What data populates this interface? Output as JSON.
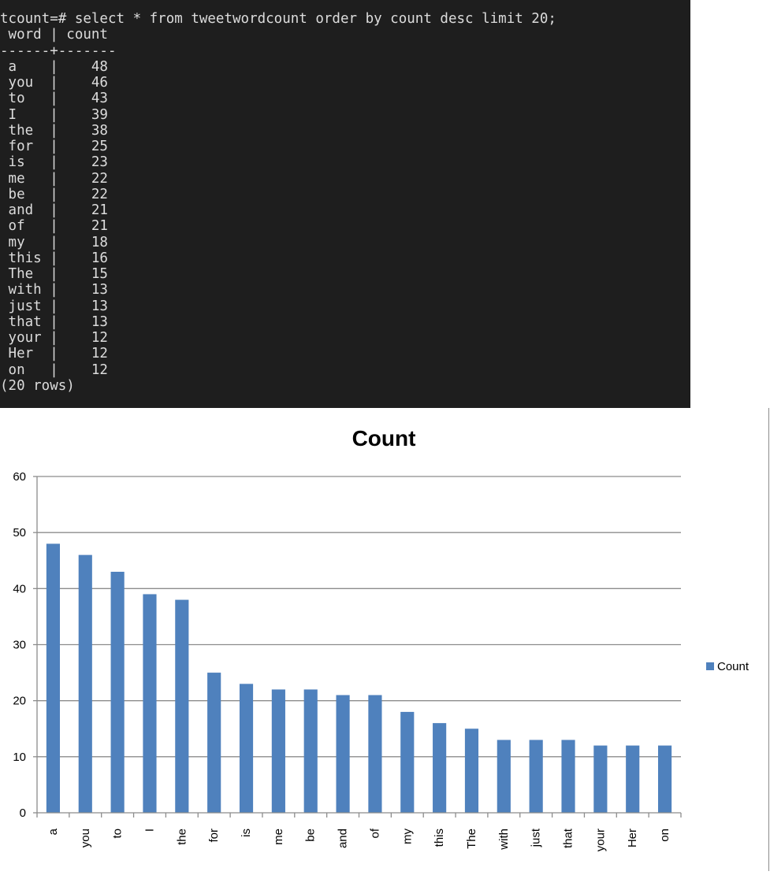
{
  "terminal": {
    "lines": [
      "tcount=# select * from tweetwordcount order by count desc limit 20;",
      " word | count",
      "------+-------",
      " a    |    48",
      " you  |    46",
      " to   |    43",
      " I    |    39",
      " the  |    38",
      " for  |    25",
      " is   |    23",
      " me   |    22",
      " be   |    22",
      " and  |    21",
      " of   |    21",
      " my   |    18",
      " this |    16",
      " The  |    15",
      " with |    13",
      " just |    13",
      " that |    13",
      " your |    12",
      " Her  |    12",
      " on   |    12",
      "(20 rows)"
    ]
  },
  "colors": {
    "terminal_bg": "#1e1e1e",
    "terminal_text": "#dcdcdc",
    "bar": "#4f81bd",
    "gridline": "#8c8c8c"
  },
  "chart_data": {
    "type": "bar",
    "title": "Count",
    "categories": [
      "a",
      "you",
      "to",
      "I",
      "the",
      "for",
      "is",
      "me",
      "be",
      "and",
      "of",
      "my",
      "this",
      "The",
      "with",
      "just",
      "that",
      "your",
      "Her",
      "on"
    ],
    "series": [
      {
        "name": "Count",
        "values": [
          48,
          46,
          43,
          39,
          38,
          25,
          23,
          22,
          22,
          21,
          21,
          18,
          16,
          15,
          13,
          13,
          13,
          12,
          12,
          12
        ]
      }
    ],
    "ylim": [
      0,
      60
    ],
    "yticks": [
      0,
      10,
      20,
      30,
      40,
      50,
      60
    ],
    "grid": true,
    "legend": "right",
    "xlabel": "",
    "ylabel": ""
  }
}
